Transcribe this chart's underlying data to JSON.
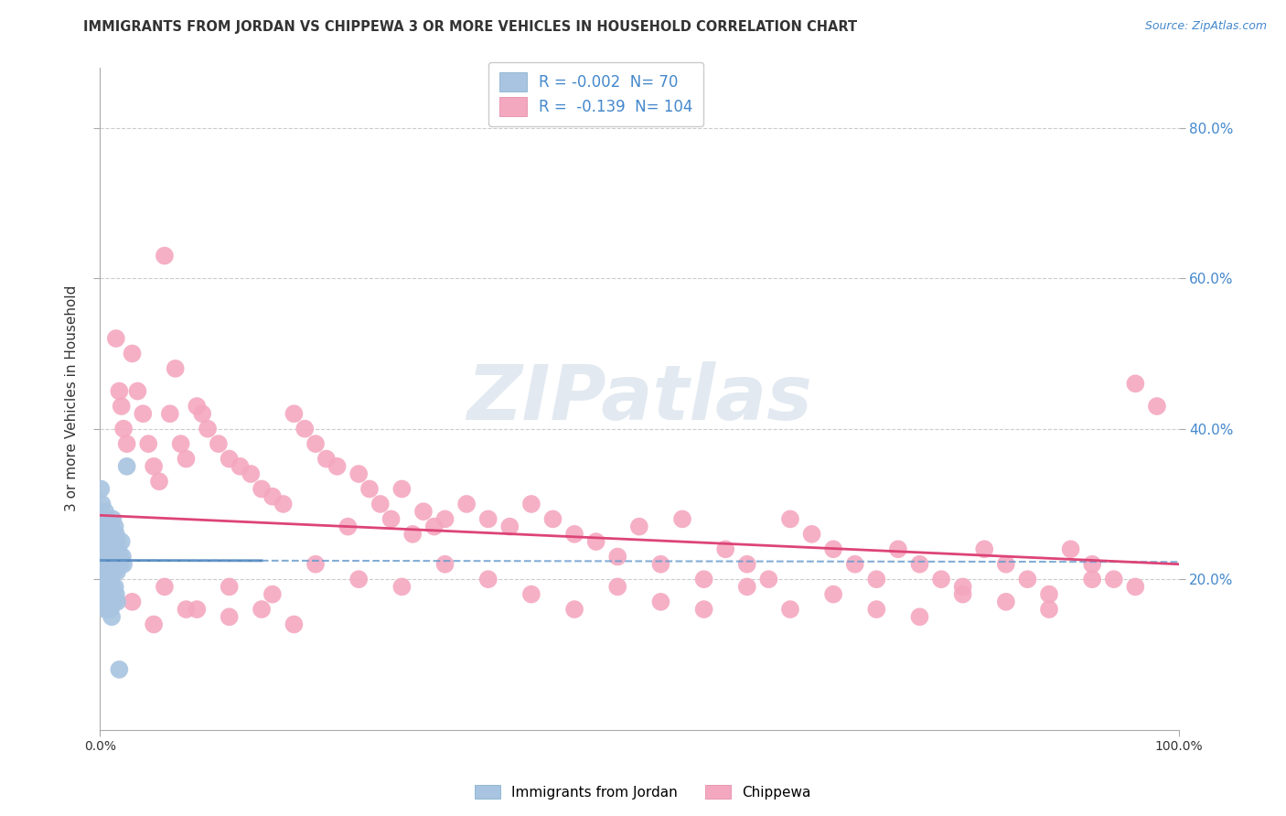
{
  "title": "IMMIGRANTS FROM JORDAN VS CHIPPEWA 3 OR MORE VEHICLES IN HOUSEHOLD CORRELATION CHART",
  "source": "Source: ZipAtlas.com",
  "ylabel": "3 or more Vehicles in Household",
  "legend": {
    "jordan": {
      "R": -0.002,
      "N": 70,
      "label": "Immigrants from Jordan",
      "color": "#a8c4e0",
      "border": "#7aaac8"
    },
    "chippewa": {
      "R": -0.139,
      "N": 104,
      "label": "Chippewa",
      "color": "#f4a8c0",
      "border": "#e080a0"
    }
  },
  "xlim": [
    0.0,
    1.0
  ],
  "ylim": [
    0.0,
    0.88
  ],
  "watermark": "ZIPatlas",
  "watermark_color": "#c8d8e8",
  "background_color": "#ffffff",
  "grid_color": "#cccccc",
  "title_color": "#333333",
  "source_color": "#4488cc",
  "right_axis_color": "#4488cc",
  "ytick_positions": [
    0.2,
    0.4,
    0.6,
    0.8
  ],
  "ytick_labels_right": [
    "20.0%",
    "40.0%",
    "60.0%",
    "80.0%"
  ],
  "xtick_positions": [
    0.0,
    1.0
  ],
  "xtick_labels": [
    "0.0%",
    "100.0%"
  ],
  "jordan_x": [
    0.001,
    0.001,
    0.002,
    0.002,
    0.003,
    0.003,
    0.004,
    0.004,
    0.005,
    0.005,
    0.005,
    0.006,
    0.006,
    0.007,
    0.007,
    0.007,
    0.008,
    0.008,
    0.009,
    0.009,
    0.01,
    0.01,
    0.01,
    0.011,
    0.011,
    0.012,
    0.012,
    0.013,
    0.013,
    0.014,
    0.014,
    0.015,
    0.015,
    0.016,
    0.016,
    0.017,
    0.018,
    0.019,
    0.02,
    0.021,
    0.022,
    0.001,
    0.002,
    0.003,
    0.003,
    0.004,
    0.005,
    0.006,
    0.006,
    0.007,
    0.008,
    0.009,
    0.01,
    0.011,
    0.012,
    0.013,
    0.014,
    0.015,
    0.016,
    0.003,
    0.004,
    0.005,
    0.006,
    0.007,
    0.008,
    0.009,
    0.01,
    0.011,
    0.018,
    0.025
  ],
  "jordan_y": [
    0.28,
    0.32,
    0.3,
    0.26,
    0.24,
    0.27,
    0.25,
    0.22,
    0.29,
    0.23,
    0.26,
    0.25,
    0.21,
    0.27,
    0.24,
    0.22,
    0.26,
    0.23,
    0.25,
    0.22,
    0.27,
    0.24,
    0.21,
    0.26,
    0.23,
    0.28,
    0.22,
    0.25,
    0.21,
    0.27,
    0.23,
    0.26,
    0.22,
    0.25,
    0.21,
    0.24,
    0.23,
    0.22,
    0.25,
    0.23,
    0.22,
    0.2,
    0.19,
    0.21,
    0.18,
    0.2,
    0.19,
    0.21,
    0.18,
    0.2,
    0.19,
    0.18,
    0.2,
    0.19,
    0.18,
    0.17,
    0.19,
    0.18,
    0.17,
    0.17,
    0.18,
    0.16,
    0.17,
    0.18,
    0.16,
    0.17,
    0.16,
    0.15,
    0.08,
    0.35
  ],
  "chippewa_x": [
    0.015,
    0.018,
    0.02,
    0.022,
    0.025,
    0.03,
    0.035,
    0.04,
    0.045,
    0.05,
    0.055,
    0.06,
    0.065,
    0.07,
    0.075,
    0.08,
    0.09,
    0.095,
    0.1,
    0.11,
    0.12,
    0.13,
    0.14,
    0.15,
    0.16,
    0.17,
    0.18,
    0.19,
    0.2,
    0.21,
    0.22,
    0.23,
    0.24,
    0.25,
    0.26,
    0.27,
    0.28,
    0.29,
    0.3,
    0.31,
    0.32,
    0.34,
    0.36,
    0.38,
    0.4,
    0.42,
    0.44,
    0.46,
    0.48,
    0.5,
    0.52,
    0.54,
    0.56,
    0.58,
    0.6,
    0.62,
    0.64,
    0.66,
    0.68,
    0.7,
    0.72,
    0.74,
    0.76,
    0.78,
    0.8,
    0.82,
    0.84,
    0.86,
    0.88,
    0.9,
    0.92,
    0.94,
    0.96,
    0.98,
    0.05,
    0.08,
    0.12,
    0.16,
    0.2,
    0.24,
    0.28,
    0.32,
    0.36,
    0.4,
    0.44,
    0.48,
    0.52,
    0.56,
    0.6,
    0.64,
    0.68,
    0.72,
    0.76,
    0.8,
    0.84,
    0.88,
    0.92,
    0.96,
    0.03,
    0.06,
    0.09,
    0.12,
    0.15,
    0.18
  ],
  "chippewa_y": [
    0.52,
    0.45,
    0.43,
    0.4,
    0.38,
    0.5,
    0.45,
    0.42,
    0.38,
    0.35,
    0.33,
    0.63,
    0.42,
    0.48,
    0.38,
    0.36,
    0.43,
    0.42,
    0.4,
    0.38,
    0.36,
    0.35,
    0.34,
    0.32,
    0.31,
    0.3,
    0.42,
    0.4,
    0.38,
    0.36,
    0.35,
    0.27,
    0.34,
    0.32,
    0.3,
    0.28,
    0.32,
    0.26,
    0.29,
    0.27,
    0.28,
    0.3,
    0.28,
    0.27,
    0.3,
    0.28,
    0.26,
    0.25,
    0.23,
    0.27,
    0.22,
    0.28,
    0.2,
    0.24,
    0.22,
    0.2,
    0.28,
    0.26,
    0.24,
    0.22,
    0.2,
    0.24,
    0.22,
    0.2,
    0.18,
    0.24,
    0.22,
    0.2,
    0.18,
    0.24,
    0.22,
    0.2,
    0.46,
    0.43,
    0.14,
    0.16,
    0.19,
    0.18,
    0.22,
    0.2,
    0.19,
    0.22,
    0.2,
    0.18,
    0.16,
    0.19,
    0.17,
    0.16,
    0.19,
    0.16,
    0.18,
    0.16,
    0.15,
    0.19,
    0.17,
    0.16,
    0.2,
    0.19,
    0.17,
    0.19,
    0.16,
    0.15,
    0.16,
    0.14
  ],
  "jordan_trend_x": [
    0.0,
    0.15
  ],
  "jordan_trend_y_start": 0.225,
  "jordan_trend_slope": -0.002,
  "chippewa_trend_y_start": 0.285,
  "chippewa_trend_slope": -0.065
}
